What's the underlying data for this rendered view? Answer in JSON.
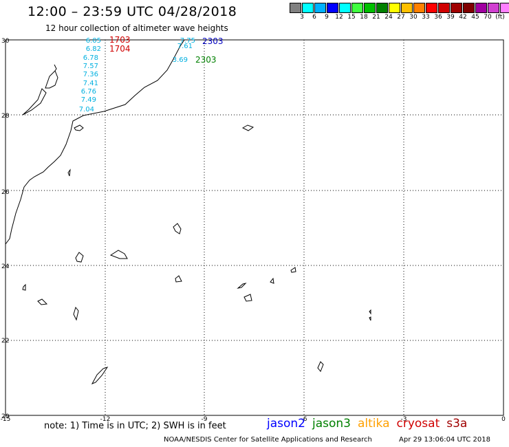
{
  "title": "12:00 – 23:59 UTC 04/28/2018",
  "subtitle": "12 hour collection of altimeter wave heights",
  "legend": {
    "colors": [
      "#808080",
      "#00ffff",
      "#00b0ff",
      "#0000ff",
      "#00ffff",
      "#40ff40",
      "#00c000",
      "#008000",
      "#ffff00",
      "#ffc000",
      "#ff8000",
      "#ff0000",
      "#d00000",
      "#a00000",
      "#800000",
      "#a000a0",
      "#d040d0",
      "#ff80ff",
      "#000000"
    ],
    "labels": [
      "3",
      "6",
      "9",
      "12",
      "15",
      "18",
      "21",
      "24",
      "27",
      "30",
      "33",
      "36",
      "39",
      "42",
      "45",
      "70",
      "(ft)"
    ]
  },
  "map": {
    "lon_ticks": [
      "-15",
      "-12",
      "-9",
      "-6",
      "-3",
      "0"
    ],
    "lat_ticks": [
      "30",
      "28",
      "26",
      "24",
      "22",
      "20"
    ]
  },
  "observations": {
    "wave_heights_left": [
      "6.05",
      "6.82",
      "6.78",
      "7.57",
      "7.36",
      "7.41",
      "6.76",
      "7.49",
      "7.04"
    ],
    "wave_heights_right": [
      "7.75",
      "7.61",
      "3.69"
    ],
    "times": [
      {
        "text": "1703",
        "color": "#d00000"
      },
      {
        "text": "1704",
        "color": "#d00000"
      },
      {
        "text": "2303",
        "color": "#0000c0"
      },
      {
        "text": "2303",
        "color": "#008000"
      }
    ]
  },
  "footer": {
    "note": "note:  1) Time is in UTC; 2) SWH is in feet",
    "satellites": [
      {
        "name": "jason2",
        "color": "#0000ff"
      },
      {
        "name": "jason3",
        "color": "#008000"
      },
      {
        "name": "altika",
        "color": "#ffa000"
      },
      {
        "name": "cryosat",
        "color": "#d00000"
      },
      {
        "name": "s3a",
        "color": "#a00000"
      }
    ],
    "credit": "NOAA/NESDIS Center for Satellite Applications and Research",
    "timestamp": "Apr 29 13:06:04 UTC 2018"
  }
}
